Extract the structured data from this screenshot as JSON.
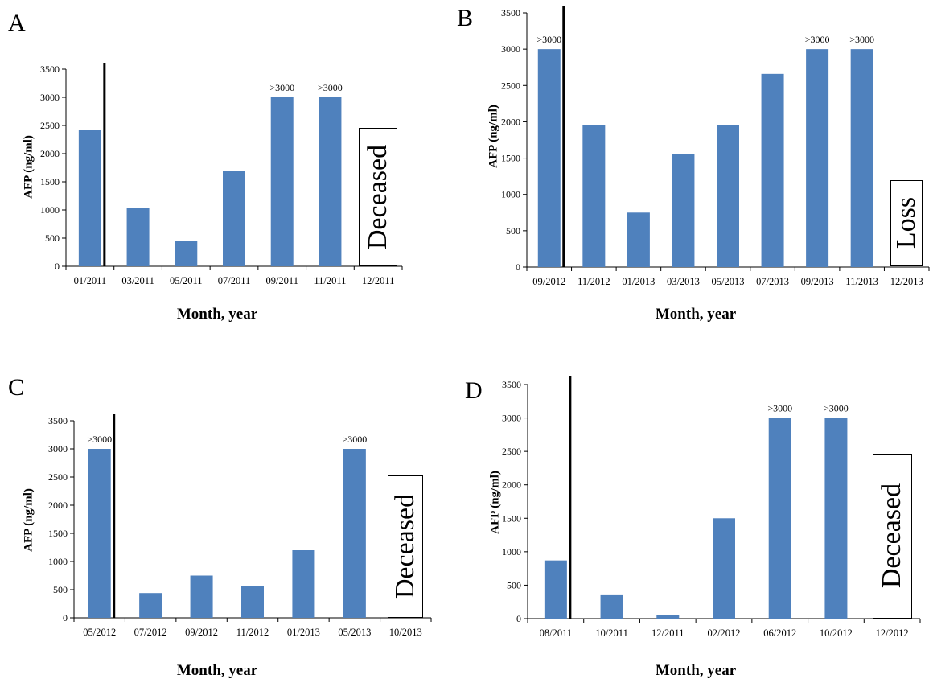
{
  "chart_data": [
    {
      "panel": "A",
      "type": "bar",
      "ylabel": "AFP (ng/ml)",
      "xlabel": "Month, year",
      "ylim": [
        0,
        3500
      ],
      "yticks": [
        "0",
        "500",
        "1000",
        "1500",
        "2000",
        "2500",
        "3000",
        "3500"
      ],
      "categories": [
        "01/2011",
        "03/2011",
        "05/2011",
        "07/2011",
        "09/2011",
        "11/2011",
        "12/2011"
      ],
      "values": [
        2420,
        1040,
        450,
        1700,
        3000,
        3000,
        null
      ],
      "bar_labels": [
        "",
        "",
        "",
        "",
        ">3000",
        ">3000",
        ""
      ],
      "bar_color": "#4f81bd",
      "status": "Deceased",
      "status_level": 2460,
      "marker_after": "01/2011"
    },
    {
      "panel": "B",
      "type": "bar",
      "ylabel": "AFP (ng/ml)",
      "xlabel": "Month, year",
      "ylim": [
        0,
        3500
      ],
      "yticks": [
        "0",
        "500",
        "1000",
        "1500",
        "2000",
        "2500",
        "3000",
        "3500"
      ],
      "categories": [
        "09/2012",
        "11/2012",
        "01/2013",
        "03/2013",
        "05/2013",
        "07/2013",
        "09/2013",
        "11/2013",
        "12/2013"
      ],
      "values": [
        3000,
        1950,
        750,
        1560,
        1950,
        2660,
        3000,
        3000,
        null
      ],
      "bar_labels": [
        ">3000",
        "",
        "",
        "",
        "",
        "",
        ">3000",
        ">3000",
        ""
      ],
      "bar_color": "#4f81bd",
      "status": "Loss",
      "status_level": 1200,
      "marker_after": "09/2012"
    },
    {
      "panel": "C",
      "type": "bar",
      "ylabel": "AFP (ng/ml)",
      "xlabel": "Month, year",
      "ylim": [
        0,
        3500
      ],
      "yticks": [
        "0",
        "500",
        "1000",
        "1500",
        "2000",
        "2500",
        "3000",
        "3500"
      ],
      "categories": [
        "05/2012",
        "07/2012",
        "09/2012",
        "11/2012",
        "01/2013",
        "05/2013",
        "10/2013"
      ],
      "values": [
        3000,
        440,
        750,
        570,
        1200,
        3000,
        null
      ],
      "bar_labels": [
        ">3000",
        "",
        "",
        "",
        "",
        ">3000",
        ""
      ],
      "bar_color": "#4f81bd",
      "status": "Deceased",
      "status_level": 2530,
      "marker_after": "05/2012"
    },
    {
      "panel": "D",
      "type": "bar",
      "ylabel": "AFP (ng/ml)",
      "xlabel": "Month, year",
      "ylim": [
        0,
        3500
      ],
      "yticks": [
        "0",
        "500",
        "1000",
        "1500",
        "2000",
        "2500",
        "3000",
        "3500"
      ],
      "categories": [
        "08/2011",
        "10/2011",
        "12/2011",
        "02/2012",
        "06/2012",
        "10/2012",
        "12/2012"
      ],
      "values": [
        870,
        350,
        50,
        1500,
        3000,
        3000,
        null
      ],
      "bar_labels": [
        "",
        "",
        "",
        "",
        ">3000",
        ">3000",
        ""
      ],
      "bar_color": "#4f81bd",
      "status": "Deceased",
      "status_level": 2470,
      "marker_after": "08/2011"
    }
  ]
}
